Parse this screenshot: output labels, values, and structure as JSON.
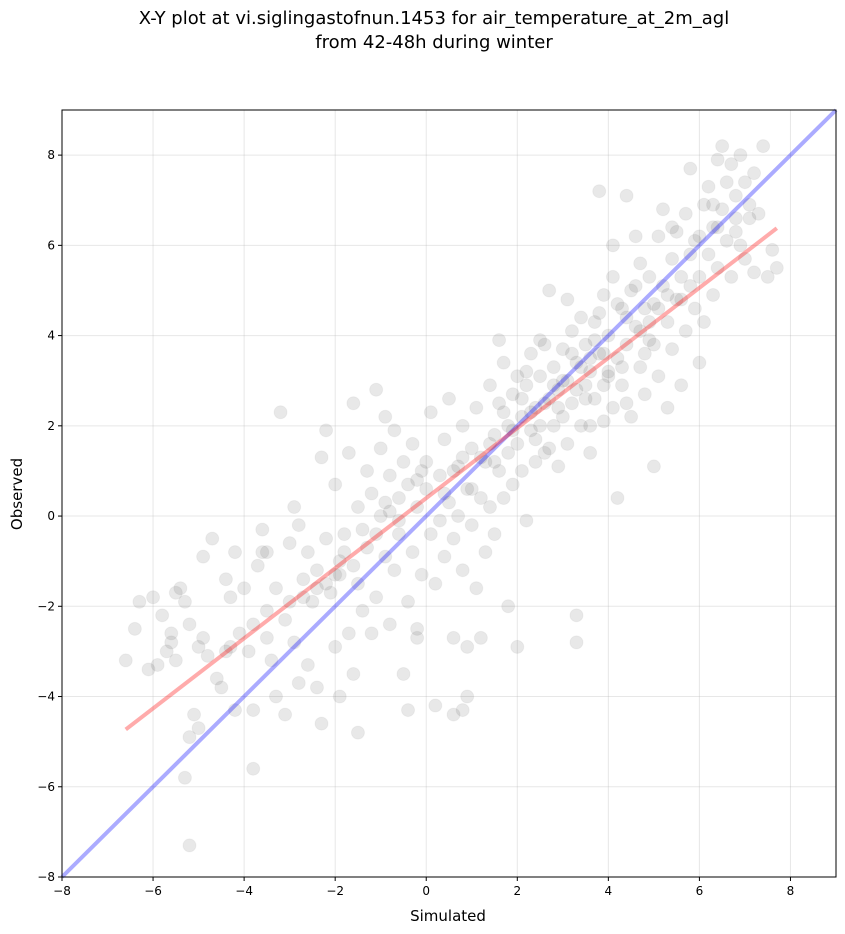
{
  "chart_data": {
    "type": "scatter",
    "title": [
      "X-Y plot at vi.siglingastofnun.1453 for air_temperature_at_2m_agl",
      "from 42-48h during winter"
    ],
    "xlabel": "Simulated",
    "ylabel": "Observed",
    "xlim": [
      -8,
      9
    ],
    "ylim": [
      -8,
      9
    ],
    "xticks": [
      -8,
      -6,
      -4,
      -2,
      0,
      2,
      4,
      6,
      8
    ],
    "yticks": [
      -8,
      -6,
      -4,
      -2,
      0,
      2,
      4,
      6,
      8
    ],
    "xtick_labels": [
      "−8",
      "−6",
      "−4",
      "−2",
      "0",
      "2",
      "4",
      "6",
      "8"
    ],
    "ytick_labels": [
      "−8",
      "−6",
      "−4",
      "−2",
      "0",
      "2",
      "4",
      "6",
      "8"
    ],
    "grid": true,
    "marker_color": "#404040",
    "marker_alpha": 0.12,
    "lines": [
      {
        "kind": "identity",
        "color": "#0000ff",
        "alpha": 0.33,
        "x": [
          -8,
          9
        ],
        "y": [
          -8,
          9
        ]
      },
      {
        "kind": "regression",
        "color": "#ff0000",
        "alpha": 0.33,
        "x": [
          -6.6,
          7.7
        ],
        "y": [
          -4.73,
          6.38
        ]
      }
    ],
    "points": [
      [
        -6.6,
        -3.2
      ],
      [
        -6.4,
        -2.5
      ],
      [
        -6.3,
        -1.9
      ],
      [
        -6.1,
        -3.4
      ],
      [
        -6.0,
        -1.8
      ],
      [
        -5.9,
        -3.3
      ],
      [
        -5.8,
        -2.2
      ],
      [
        -5.7,
        -3.0
      ],
      [
        -5.6,
        -2.6
      ],
      [
        -5.5,
        -3.2
      ],
      [
        -5.4,
        -1.6
      ],
      [
        -5.3,
        -1.9
      ],
      [
        -5.2,
        -2.4
      ],
      [
        -5.2,
        -4.9
      ],
      [
        -5.1,
        -4.4
      ],
      [
        -5.0,
        -2.9
      ],
      [
        -5.0,
        -4.7
      ],
      [
        -4.9,
        -0.9
      ],
      [
        -4.8,
        -3.1
      ],
      [
        -4.7,
        -0.5
      ],
      [
        -4.6,
        -3.6
      ],
      [
        -4.5,
        -3.8
      ],
      [
        -4.4,
        -1.4
      ],
      [
        -4.3,
        -2.9
      ],
      [
        -4.2,
        -0.8
      ],
      [
        -4.2,
        -4.3
      ],
      [
        -4.1,
        -2.6
      ],
      [
        -4.0,
        -1.6
      ],
      [
        -3.9,
        -3.0
      ],
      [
        -3.8,
        -4.3
      ],
      [
        -3.8,
        -2.4
      ],
      [
        -3.7,
        -1.1
      ],
      [
        -3.6,
        -0.3
      ],
      [
        -3.5,
        -0.8
      ],
      [
        -3.5,
        -2.1
      ],
      [
        -3.4,
        -3.2
      ],
      [
        -3.3,
        -4.0
      ],
      [
        -3.3,
        -1.6
      ],
      [
        -3.2,
        2.3
      ],
      [
        -3.1,
        -4.4
      ],
      [
        -3.0,
        -0.6
      ],
      [
        -3.0,
        -1.9
      ],
      [
        -2.9,
        -2.8
      ],
      [
        -2.8,
        -0.2
      ],
      [
        -2.7,
        -1.4
      ],
      [
        -2.6,
        -3.3
      ],
      [
        -2.6,
        -0.8
      ],
      [
        -2.5,
        -1.9
      ],
      [
        -2.4,
        -1.2
      ],
      [
        -2.4,
        -3.8
      ],
      [
        -2.3,
        1.3
      ],
      [
        -2.3,
        -4.6
      ],
      [
        -2.2,
        -0.5
      ],
      [
        -2.2,
        1.9
      ],
      [
        -2.1,
        -1.7
      ],
      [
        -2.0,
        -2.9
      ],
      [
        -2.0,
        0.7
      ],
      [
        -1.9,
        -1.3
      ],
      [
        -1.9,
        -1.0
      ],
      [
        -1.8,
        -0.4
      ],
      [
        -1.7,
        1.4
      ],
      [
        -1.7,
        -2.6
      ],
      [
        -1.6,
        2.5
      ],
      [
        -1.6,
        -3.5
      ],
      [
        -1.5,
        0.2
      ],
      [
        -1.5,
        -1.5
      ],
      [
        -1.4,
        -2.1
      ],
      [
        -1.3,
        1.0
      ],
      [
        -1.3,
        -0.7
      ],
      [
        -1.2,
        0.5
      ],
      [
        -1.2,
        -2.6
      ],
      [
        -1.1,
        2.8
      ],
      [
        -1.1,
        -1.8
      ],
      [
        -1.0,
        0.0
      ],
      [
        -1.0,
        1.5
      ],
      [
        -0.9,
        -0.9
      ],
      [
        -0.9,
        2.2
      ],
      [
        -0.8,
        -2.4
      ],
      [
        -0.8,
        0.9
      ],
      [
        -0.7,
        1.9
      ],
      [
        -0.7,
        -1.2
      ],
      [
        -0.6,
        -0.4
      ],
      [
        -0.6,
        0.4
      ],
      [
        -0.5,
        1.2
      ],
      [
        -0.5,
        -3.5
      ],
      [
        -0.4,
        -1.9
      ],
      [
        -0.4,
        0.7
      ],
      [
        -0.3,
        -0.8
      ],
      [
        -0.3,
        1.6
      ],
      [
        -0.2,
        0.2
      ],
      [
        -0.2,
        -2.7
      ],
      [
        -0.1,
        1.0
      ],
      [
        -0.1,
        -1.3
      ],
      [
        0.0,
        0.6
      ],
      [
        0.0,
        1.2
      ],
      [
        0.1,
        -0.4
      ],
      [
        0.1,
        2.3
      ],
      [
        0.2,
        -1.5
      ],
      [
        0.3,
        0.9
      ],
      [
        0.3,
        -0.1
      ],
      [
        0.4,
        1.7
      ],
      [
        0.4,
        -0.9
      ],
      [
        0.5,
        0.3
      ],
      [
        0.5,
        2.6
      ],
      [
        0.6,
        -2.7
      ],
      [
        0.6,
        -0.5
      ],
      [
        0.7,
        1.1
      ],
      [
        0.7,
        0.0
      ],
      [
        0.8,
        2.0
      ],
      [
        0.8,
        -1.2
      ],
      [
        0.9,
        0.6
      ],
      [
        0.9,
        -4.0
      ],
      [
        1.0,
        1.5
      ],
      [
        1.0,
        -0.2
      ],
      [
        1.1,
        2.4
      ],
      [
        1.1,
        -1.6
      ],
      [
        1.2,
        0.4
      ],
      [
        1.2,
        -2.7
      ],
      [
        1.3,
        1.2
      ],
      [
        1.3,
        -0.8
      ],
      [
        1.4,
        2.9
      ],
      [
        1.4,
        0.2
      ],
      [
        1.5,
        1.8
      ],
      [
        1.5,
        -0.4
      ],
      [
        1.6,
        2.5
      ],
      [
        1.6,
        1.0
      ],
      [
        1.7,
        0.4
      ],
      [
        1.7,
        3.4
      ],
      [
        1.8,
        2.0
      ],
      [
        1.8,
        1.4
      ],
      [
        1.9,
        2.7
      ],
      [
        1.9,
        0.7
      ],
      [
        2.0,
        1.6
      ],
      [
        2.0,
        3.1
      ],
      [
        2.1,
        2.2
      ],
      [
        2.1,
        1.0
      ],
      [
        2.2,
        2.9
      ],
      [
        2.2,
        -0.1
      ],
      [
        2.3,
        1.9
      ],
      [
        2.3,
        3.6
      ],
      [
        2.4,
        2.4
      ],
      [
        2.4,
        1.2
      ],
      [
        2.5,
        3.1
      ],
      [
        2.5,
        2.0
      ],
      [
        2.6,
        1.4
      ],
      [
        2.6,
        3.8
      ],
      [
        2.7,
        2.6
      ],
      [
        2.7,
        5.0
      ],
      [
        2.8,
        2.0
      ],
      [
        2.8,
        3.3
      ],
      [
        2.9,
        1.1
      ],
      [
        2.9,
        2.8
      ],
      [
        3.0,
        3.7
      ],
      [
        3.0,
        2.2
      ],
      [
        3.1,
        3.0
      ],
      [
        3.1,
        1.6
      ],
      [
        3.2,
        4.1
      ],
      [
        3.2,
        2.5
      ],
      [
        3.3,
        3.4
      ],
      [
        3.3,
        -2.2
      ],
      [
        3.4,
        2.0
      ],
      [
        3.4,
        4.4
      ],
      [
        3.5,
        2.9
      ],
      [
        3.5,
        3.8
      ],
      [
        3.6,
        1.4
      ],
      [
        3.6,
        3.2
      ],
      [
        3.7,
        4.3
      ],
      [
        3.7,
        2.6
      ],
      [
        3.8,
        7.2
      ],
      [
        3.8,
        3.6
      ],
      [
        3.9,
        2.1
      ],
      [
        3.9,
        4.9
      ],
      [
        4.0,
        3.1
      ],
      [
        4.0,
        4.0
      ],
      [
        4.1,
        2.4
      ],
      [
        4.1,
        5.3
      ],
      [
        4.2,
        3.5
      ],
      [
        4.2,
        0.4
      ],
      [
        4.3,
        4.6
      ],
      [
        4.3,
        2.9
      ],
      [
        4.4,
        7.1
      ],
      [
        4.4,
        3.8
      ],
      [
        4.5,
        5.0
      ],
      [
        4.5,
        2.2
      ],
      [
        4.6,
        4.2
      ],
      [
        4.6,
        6.2
      ],
      [
        4.7,
        3.3
      ],
      [
        4.7,
        5.6
      ],
      [
        4.8,
        4.6
      ],
      [
        4.8,
        2.7
      ],
      [
        4.9,
        5.3
      ],
      [
        4.9,
        3.9
      ],
      [
        5.0,
        1.1
      ],
      [
        5.0,
        4.7
      ],
      [
        5.1,
        6.2
      ],
      [
        5.1,
        3.1
      ],
      [
        5.2,
        5.1
      ],
      [
        5.2,
        6.8
      ],
      [
        5.3,
        4.3
      ],
      [
        5.3,
        2.4
      ],
      [
        5.4,
        5.7
      ],
      [
        5.4,
        3.7
      ],
      [
        5.5,
        6.3
      ],
      [
        5.5,
        4.8
      ],
      [
        5.6,
        5.3
      ],
      [
        5.6,
        2.9
      ],
      [
        5.7,
        6.7
      ],
      [
        5.7,
        4.1
      ],
      [
        5.8,
        5.8
      ],
      [
        5.8,
        7.7
      ],
      [
        5.9,
        4.6
      ],
      [
        5.9,
        6.1
      ],
      [
        6.0,
        3.4
      ],
      [
        6.0,
        5.3
      ],
      [
        6.1,
        6.9
      ],
      [
        6.1,
        4.3
      ],
      [
        6.2,
        7.3
      ],
      [
        6.2,
        5.8
      ],
      [
        6.3,
        6.4
      ],
      [
        6.3,
        4.9
      ],
      [
        6.4,
        7.9
      ],
      [
        6.4,
        5.5
      ],
      [
        6.5,
        6.8
      ],
      [
        6.5,
        8.2
      ],
      [
        6.6,
        6.1
      ],
      [
        6.6,
        7.4
      ],
      [
        6.7,
        5.3
      ],
      [
        6.7,
        7.8
      ],
      [
        6.8,
        6.6
      ],
      [
        6.8,
        7.1
      ],
      [
        6.9,
        6.0
      ],
      [
        6.9,
        8.0
      ],
      [
        7.0,
        7.4
      ],
      [
        7.0,
        5.7
      ],
      [
        7.1,
        6.9
      ],
      [
        7.2,
        7.6
      ],
      [
        7.2,
        5.4
      ],
      [
        7.3,
        6.7
      ],
      [
        7.4,
        8.2
      ],
      [
        7.5,
        5.3
      ],
      [
        7.6,
        5.9
      ],
      [
        7.7,
        5.5
      ],
      [
        -5.2,
        -7.3
      ],
      [
        -5.3,
        -5.8
      ],
      [
        -3.8,
        -5.6
      ],
      [
        -2.9,
        0.2
      ],
      [
        0.8,
        -4.3
      ],
      [
        0.9,
        -2.9
      ],
      [
        1.8,
        -2.0
      ],
      [
        2.0,
        -2.9
      ],
      [
        3.3,
        -2.8
      ],
      [
        0.6,
        -4.4
      ],
      [
        0.2,
        -4.2
      ],
      [
        -0.4,
        -4.3
      ],
      [
        -1.5,
        -4.8
      ],
      [
        -1.9,
        -4.0
      ],
      [
        -2.8,
        -3.7
      ],
      [
        -4.3,
        -1.8
      ],
      [
        -3.1,
        -2.3
      ],
      [
        -0.2,
        -2.5
      ],
      [
        1.6,
        3.9
      ],
      [
        2.5,
        3.9
      ],
      [
        3.1,
        4.8
      ],
      [
        4.1,
        6.0
      ],
      [
        4.6,
        5.1
      ],
      [
        5.4,
        6.4
      ],
      [
        6.3,
        6.9
      ],
      [
        2.2,
        3.2
      ],
      [
        1.4,
        1.6
      ],
      [
        0.8,
        1.3
      ],
      [
        3.6,
        2.0
      ],
      [
        4.4,
        2.5
      ],
      [
        5.0,
        3.8
      ],
      [
        2.7,
        1.5
      ],
      [
        3.9,
        2.9
      ],
      [
        3.4,
        3.3
      ],
      [
        4.8,
        3.6
      ],
      [
        3.0,
        3.0
      ],
      [
        3.8,
        4.5
      ],
      [
        4.2,
        4.7
      ],
      [
        2.3,
        2.3
      ],
      [
        2.9,
        2.4
      ],
      [
        3.7,
        3.9
      ],
      [
        4.0,
        3.2
      ],
      [
        4.4,
        4.4
      ],
      [
        1.9,
        1.9
      ],
      [
        2.6,
        2.5
      ],
      [
        3.2,
        3.6
      ],
      [
        3.5,
        2.6
      ],
      [
        4.7,
        4.1
      ],
      [
        -2.0,
        -1.3
      ],
      [
        -1.8,
        -0.8
      ],
      [
        -2.4,
        -1.6
      ],
      [
        -1.6,
        -1.1
      ],
      [
        -2.2,
        -1.5
      ],
      [
        -1.4,
        -0.3
      ],
      [
        -0.9,
        0.3
      ],
      [
        -0.6,
        -0.1
      ],
      [
        -3.5,
        -2.7
      ],
      [
        -4.4,
        -3.0
      ],
      [
        -4.9,
        -2.7
      ],
      [
        -5.6,
        -2.8
      ],
      [
        -5.5,
        -1.7
      ],
      [
        -3.6,
        -0.8
      ],
      [
        -2.7,
        -1.8
      ],
      [
        -1.1,
        -0.4
      ],
      [
        0.4,
        0.5
      ],
      [
        1.0,
        0.6
      ],
      [
        1.2,
        1.3
      ],
      [
        0.6,
        1.0
      ],
      [
        -0.2,
        0.8
      ],
      [
        -0.8,
        0.1
      ],
      [
        1.7,
        2.3
      ],
      [
        2.1,
        2.6
      ],
      [
        3.3,
        2.8
      ],
      [
        3.9,
        3.6
      ],
      [
        4.3,
        3.3
      ],
      [
        5.1,
        4.6
      ],
      [
        5.6,
        4.8
      ],
      [
        6.0,
        6.2
      ],
      [
        6.4,
        6.4
      ],
      [
        6.8,
        6.3
      ],
      [
        7.1,
        6.6
      ],
      [
        5.8,
        5.1
      ],
      [
        5.3,
        4.9
      ],
      [
        4.9,
        4.3
      ],
      [
        3.6,
        3.5
      ],
      [
        2.8,
        2.9
      ],
      [
        2.4,
        1.7
      ],
      [
        1.5,
        1.2
      ]
    ]
  }
}
